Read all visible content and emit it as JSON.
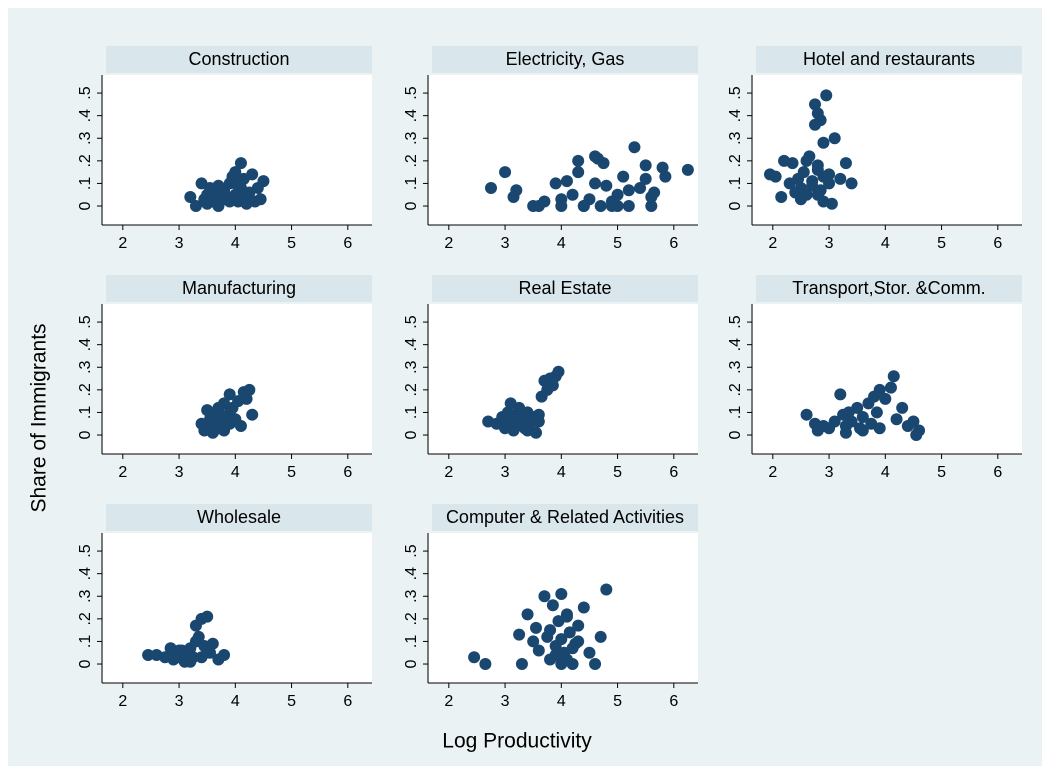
{
  "x_axis_label": "Log Productivity",
  "y_axis_label": "Share of Immigrants",
  "chart_data": [
    {
      "type": "scatter",
      "title": "Construction",
      "color": "#1a476f",
      "x": [
        3.2,
        3.3,
        3.4,
        3.45,
        3.5,
        3.55,
        3.6,
        3.65,
        3.7,
        3.75,
        3.8,
        3.85,
        3.9,
        3.95,
        4.0,
        4.0,
        4.05,
        4.1,
        4.1,
        4.15,
        4.2,
        4.25,
        4.3,
        4.35,
        4.4,
        4.45,
        4.5,
        3.5,
        3.7,
        3.9,
        4.0,
        4.1,
        4.2,
        3.6,
        3.8
      ],
      "y": [
        0.04,
        0.0,
        0.1,
        0.03,
        0.05,
        0.08,
        0.02,
        0.06,
        0.09,
        0.03,
        0.07,
        0.04,
        0.1,
        0.13,
        0.05,
        0.15,
        0.02,
        0.19,
        0.08,
        0.12,
        0.04,
        0.06,
        0.14,
        0.02,
        0.08,
        0.03,
        0.11,
        0.01,
        0.0,
        0.02,
        0.1,
        0.05,
        0.01,
        0.04,
        0.03
      ],
      "xlim": [
        1.63,
        6.43
      ],
      "ylim": [
        -0.084,
        0.58
      ],
      "xticks": [
        2,
        3,
        4,
        5,
        6
      ],
      "yticks": [
        0,
        {
          "value": 0.1,
          "label": ".1"
        },
        {
          "value": 0.2,
          "label": ".2"
        },
        {
          "value": 0.3,
          "label": ".3"
        },
        {
          "value": 0.4,
          "label": ".4"
        },
        {
          "value": 0.5,
          "label": ".5"
        }
      ]
    },
    {
      "type": "scatter",
      "title": "Electricity, Gas",
      "color": "#1a476f",
      "x": [
        2.75,
        3.0,
        3.15,
        3.2,
        3.5,
        3.7,
        3.9,
        4.0,
        4.1,
        4.2,
        4.3,
        4.4,
        4.5,
        4.6,
        4.7,
        4.75,
        4.8,
        4.9,
        5.0,
        5.1,
        5.2,
        5.3,
        5.4,
        5.5,
        5.6,
        5.65,
        5.8,
        5.85,
        6.25,
        4.0,
        4.3,
        4.6,
        4.9,
        5.2,
        5.5,
        3.6,
        4.4,
        5.0,
        5.6,
        4.65
      ],
      "y": [
        0.08,
        0.15,
        0.04,
        0.07,
        0.0,
        0.02,
        0.1,
        0.0,
        0.11,
        0.05,
        0.2,
        0.0,
        0.03,
        0.22,
        0.0,
        0.19,
        0.09,
        0.0,
        0.05,
        0.13,
        0.0,
        0.26,
        0.08,
        0.18,
        0.0,
        0.06,
        0.17,
        0.13,
        0.16,
        0.03,
        0.15,
        0.1,
        0.02,
        0.07,
        0.12,
        0.0,
        0.0,
        0.0,
        0.04,
        0.21
      ],
      "xlim": [
        1.63,
        6.43
      ],
      "ylim": [
        -0.084,
        0.58
      ],
      "xticks": [
        2,
        3,
        4,
        5,
        6
      ],
      "yticks": [
        0,
        {
          "value": 0.1,
          "label": ".1"
        },
        {
          "value": 0.2,
          "label": ".2"
        },
        {
          "value": 0.3,
          "label": ".3"
        },
        {
          "value": 0.4,
          "label": ".4"
        },
        {
          "value": 0.5,
          "label": ".5"
        }
      ]
    },
    {
      "type": "scatter",
      "title": "Hotel and restaurants",
      "color": "#1a476f",
      "x": [
        1.95,
        2.05,
        2.15,
        2.2,
        2.3,
        2.35,
        2.4,
        2.45,
        2.5,
        2.55,
        2.6,
        2.65,
        2.7,
        2.75,
        2.8,
        2.8,
        2.85,
        2.9,
        2.95,
        3.0,
        3.05,
        3.1,
        3.2,
        3.3,
        3.4,
        2.7,
        2.75,
        2.8,
        2.85,
        2.9,
        2.6,
        2.5,
        3.0,
        2.9,
        2.8
      ],
      "y": [
        0.14,
        0.13,
        0.04,
        0.2,
        0.1,
        0.19,
        0.06,
        0.12,
        0.08,
        0.15,
        0.05,
        0.22,
        0.11,
        0.45,
        0.41,
        0.18,
        0.38,
        0.28,
        0.49,
        0.14,
        0.01,
        0.3,
        0.12,
        0.19,
        0.1,
        0.09,
        0.36,
        0.16,
        0.07,
        0.02,
        0.2,
        0.03,
        0.1,
        0.13,
        0.05
      ],
      "xlim": [
        1.63,
        6.43
      ],
      "ylim": [
        -0.084,
        0.58
      ],
      "xticks": [
        2,
        3,
        4,
        5,
        6
      ],
      "yticks": [
        0,
        {
          "value": 0.1,
          "label": ".1"
        },
        {
          "value": 0.2,
          "label": ".2"
        },
        {
          "value": 0.3,
          "label": ".3"
        },
        {
          "value": 0.4,
          "label": ".4"
        },
        {
          "value": 0.5,
          "label": ".5"
        }
      ]
    },
    {
      "type": "scatter",
      "title": "Manufacturing",
      "color": "#1a476f",
      "x": [
        3.4,
        3.45,
        3.5,
        3.5,
        3.55,
        3.6,
        3.6,
        3.65,
        3.7,
        3.7,
        3.75,
        3.8,
        3.8,
        3.85,
        3.9,
        3.9,
        3.95,
        4.0,
        4.05,
        4.1,
        4.15,
        4.2,
        4.25,
        4.3,
        3.6,
        3.7,
        3.8,
        3.9,
        4.0
      ],
      "y": [
        0.05,
        0.02,
        0.11,
        0.04,
        0.07,
        0.01,
        0.09,
        0.05,
        0.03,
        0.1,
        0.06,
        0.14,
        0.02,
        0.08,
        0.18,
        0.05,
        0.12,
        0.07,
        0.15,
        0.04,
        0.19,
        0.16,
        0.2,
        0.09,
        0.03,
        0.12,
        0.04,
        0.1,
        0.06
      ],
      "xlim": [
        1.63,
        6.43
      ],
      "ylim": [
        -0.084,
        0.58
      ],
      "xticks": [
        2,
        3,
        4,
        5,
        6
      ],
      "yticks": [
        0,
        {
          "value": 0.1,
          "label": ".1"
        },
        {
          "value": 0.2,
          "label": ".2"
        },
        {
          "value": 0.3,
          "label": ".3"
        },
        {
          "value": 0.4,
          "label": ".4"
        },
        {
          "value": 0.5,
          "label": ".5"
        }
      ]
    },
    {
      "type": "scatter",
      "title": "Real Estate",
      "color": "#1a476f",
      "x": [
        2.7,
        2.85,
        2.95,
        3.0,
        3.05,
        3.1,
        3.1,
        3.15,
        3.2,
        3.2,
        3.25,
        3.3,
        3.35,
        3.4,
        3.45,
        3.5,
        3.55,
        3.6,
        3.6,
        3.65,
        3.7,
        3.75,
        3.8,
        3.85,
        3.9,
        3.95,
        3.3,
        3.4
      ],
      "y": [
        0.06,
        0.05,
        0.08,
        0.03,
        0.1,
        0.14,
        0.06,
        0.02,
        0.09,
        0.04,
        0.12,
        0.07,
        0.03,
        0.1,
        0.05,
        0.08,
        0.01,
        0.06,
        0.09,
        0.17,
        0.24,
        0.2,
        0.25,
        0.22,
        0.26,
        0.28,
        0.05,
        0.02
      ],
      "xlim": [
        1.63,
        6.43
      ],
      "ylim": [
        -0.084,
        0.58
      ],
      "xticks": [
        2,
        3,
        4,
        5,
        6
      ],
      "yticks": [
        0,
        {
          "value": 0.1,
          "label": ".1"
        },
        {
          "value": 0.2,
          "label": ".2"
        },
        {
          "value": 0.3,
          "label": ".3"
        },
        {
          "value": 0.4,
          "label": ".4"
        },
        {
          "value": 0.5,
          "label": ".5"
        }
      ]
    },
    {
      "type": "scatter",
      "title": "Transport,Stor. &Comm.",
      "color": "#1a476f",
      "x": [
        2.6,
        2.75,
        2.8,
        2.9,
        3.0,
        3.1,
        3.2,
        3.25,
        3.3,
        3.35,
        3.4,
        3.5,
        3.55,
        3.6,
        3.7,
        3.75,
        3.8,
        3.85,
        3.9,
        4.0,
        4.1,
        4.15,
        4.2,
        4.3,
        4.4,
        4.5,
        4.55,
        4.6,
        3.3,
        3.6,
        3.9
      ],
      "y": [
        0.09,
        0.05,
        0.02,
        0.04,
        0.03,
        0.06,
        0.18,
        0.09,
        0.04,
        0.1,
        0.06,
        0.12,
        0.03,
        0.08,
        0.14,
        0.05,
        0.17,
        0.1,
        0.2,
        0.16,
        0.21,
        0.26,
        0.07,
        0.12,
        0.04,
        0.06,
        0.0,
        0.02,
        0.01,
        0.02,
        0.03
      ],
      "xlim": [
        1.63,
        6.43
      ],
      "ylim": [
        -0.084,
        0.58
      ],
      "xticks": [
        2,
        3,
        4,
        5,
        6
      ],
      "yticks": [
        0,
        {
          "value": 0.1,
          "label": ".1"
        },
        {
          "value": 0.2,
          "label": ".2"
        },
        {
          "value": 0.3,
          "label": ".3"
        },
        {
          "value": 0.4,
          "label": ".4"
        },
        {
          "value": 0.5,
          "label": ".5"
        }
      ]
    },
    {
      "type": "scatter",
      "title": "Wholesale",
      "color": "#1a476f",
      "x": [
        2.45,
        2.6,
        2.75,
        2.85,
        2.9,
        2.95,
        3.0,
        3.05,
        3.1,
        3.15,
        3.2,
        3.25,
        3.3,
        3.3,
        3.35,
        3.4,
        3.45,
        3.5,
        3.55,
        3.6,
        3.7,
        3.8,
        3.0,
        3.2,
        3.4
      ],
      "y": [
        0.04,
        0.04,
        0.03,
        0.07,
        0.02,
        0.05,
        0.03,
        0.06,
        0.01,
        0.04,
        0.07,
        0.03,
        0.1,
        0.17,
        0.12,
        0.2,
        0.08,
        0.21,
        0.05,
        0.09,
        0.02,
        0.04,
        0.06,
        0.01,
        0.03
      ],
      "xlim": [
        1.63,
        6.43
      ],
      "ylim": [
        -0.084,
        0.58
      ],
      "xticks": [
        2,
        3,
        4,
        5,
        6
      ],
      "yticks": [
        0,
        {
          "value": 0.1,
          "label": ".1"
        },
        {
          "value": 0.2,
          "label": ".2"
        },
        {
          "value": 0.3,
          "label": ".3"
        },
        {
          "value": 0.4,
          "label": ".4"
        },
        {
          "value": 0.5,
          "label": ".5"
        }
      ]
    },
    {
      "type": "scatter",
      "title": "Computer & Related Activities",
      "color": "#1a476f",
      "x": [
        2.45,
        2.65,
        3.25,
        3.3,
        3.4,
        3.5,
        3.55,
        3.6,
        3.7,
        3.75,
        3.8,
        3.85,
        3.9,
        3.95,
        4.0,
        4.05,
        4.1,
        4.15,
        4.2,
        4.25,
        4.3,
        4.4,
        4.5,
        4.6,
        4.7,
        4.8,
        3.9,
        4.0,
        4.1,
        4.2,
        4.3,
        4.0,
        3.8,
        4.1
      ],
      "y": [
        0.03,
        0.0,
        0.13,
        0.0,
        0.22,
        0.1,
        0.16,
        0.06,
        0.3,
        0.12,
        0.02,
        0.26,
        0.08,
        0.19,
        0.31,
        0.05,
        0.22,
        0.14,
        0.0,
        0.09,
        0.17,
        0.25,
        0.05,
        0.0,
        0.12,
        0.33,
        0.04,
        0.11,
        0.02,
        0.07,
        0.1,
        0.0,
        0.15,
        0.21
      ],
      "xlim": [
        1.63,
        6.43
      ],
      "ylim": [
        -0.084,
        0.58
      ],
      "xticks": [
        2,
        3,
        4,
        5,
        6
      ],
      "yticks": [
        0,
        {
          "value": 0.1,
          "label": ".1"
        },
        {
          "value": 0.2,
          "label": ".2"
        },
        {
          "value": 0.3,
          "label": ".3"
        },
        {
          "value": 0.4,
          "label": ".4"
        },
        {
          "value": 0.5,
          "label": ".5"
        }
      ]
    }
  ]
}
